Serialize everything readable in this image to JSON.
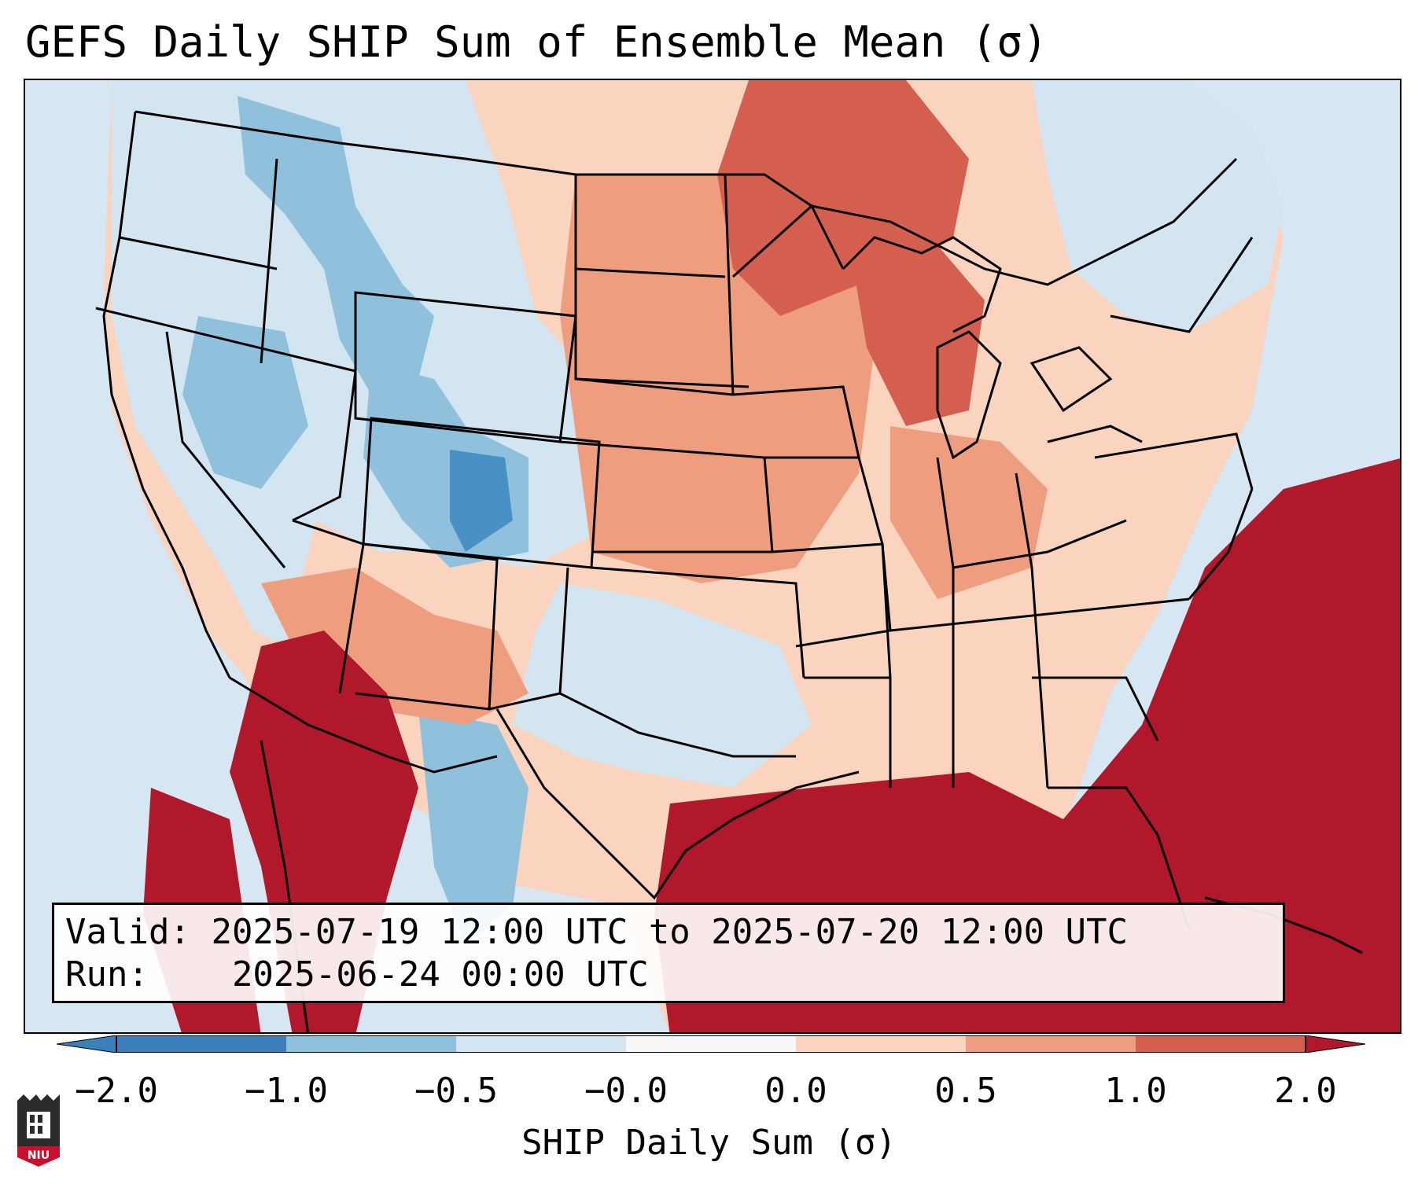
{
  "title": "GEFS Daily SHIP Sum of Ensemble Mean (σ)",
  "info": {
    "valid_label": "Valid:",
    "valid_value": "2025-07-19 12:00 UTC to 2025-07-20 12:00 UTC",
    "run_label": "Run:",
    "run_value": "2025-06-24 00:00 UTC"
  },
  "colorbar": {
    "label": "SHIP Daily Sum (σ)",
    "ticks": [
      "−2.0",
      "−1.0",
      "−0.5",
      "−0.0",
      "0.0",
      "0.5",
      "1.0",
      "2.0"
    ],
    "colors": [
      "#3b80bb",
      "#8fc1dd",
      "#d2e5f0",
      "#f7f7f7",
      "#fbd4c0",
      "#ee9e7f",
      "#d45f4e",
      "#b2182b"
    ]
  },
  "map": {
    "region": "Continental United States",
    "palette": {
      "ocean": "#d6e6f2",
      "light_blue": "#d2e5f0",
      "mid_blue": "#8fc1dd",
      "dark_blue": "#4891c4",
      "light_red": "#fbd4c0",
      "mid_red": "#ee9e7f",
      "red": "#d45f4e",
      "dark_red": "#b2182b",
      "border": "#000000"
    }
  },
  "logo": {
    "text": "NIU",
    "color": "#c8102e"
  }
}
